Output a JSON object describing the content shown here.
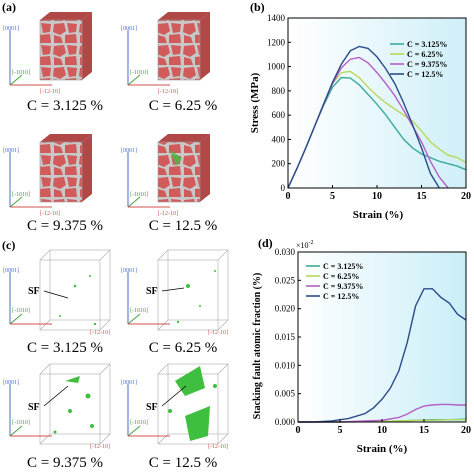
{
  "panel_labels": {
    "a": "(a)",
    "b": "(b)",
    "c": "(c)",
    "d": "(d)"
  },
  "axis_labels": {
    "z": "[0001]",
    "y": "[-1010]",
    "x": "[-12-10]"
  },
  "sf_label": "SF",
  "captions_a": [
    "C = 3.125 %",
    "C = 6.25 %",
    "C = 9.375 %",
    "C = 12.5 %"
  ],
  "captions_c": [
    "C = 3.125 %",
    "C = 6.25 %",
    "C = 9.375 %",
    "C = 12.5 %"
  ],
  "colors": {
    "grain": "#d15b5b",
    "boundary": "#c8c8c8",
    "sf_green": "#3fbf3f",
    "c3125": "#3aaa9a",
    "c625": "#b8d85a",
    "c9375": "#b65ec7",
    "c125": "#2b4c8c"
  },
  "chart_data": [
    {
      "type": "line",
      "xlabel": "Strain (%)",
      "ylabel": "Stress (MPa)",
      "xlim": [
        0,
        20
      ],
      "ylim": [
        0,
        1400
      ],
      "xticks": [
        0,
        5,
        10,
        15,
        20
      ],
      "yticks": [
        0,
        200,
        400,
        600,
        800,
        1000,
        1200,
        1400
      ],
      "legend_position": "top-right",
      "series": [
        {
          "name": "C = 3.125%",
          "color": "#3aaa9a",
          "x": [
            0,
            1,
            2,
            3,
            4,
            5,
            6,
            7,
            8,
            9,
            10,
            11,
            12,
            13,
            14,
            15,
            16,
            17,
            18,
            19,
            20
          ],
          "y": [
            0,
            160,
            330,
            510,
            680,
            830,
            910,
            905,
            850,
            770,
            690,
            600,
            500,
            400,
            330,
            280,
            250,
            220,
            200,
            180,
            150
          ]
        },
        {
          "name": "C = 6.25%",
          "color": "#b8d85a",
          "x": [
            0,
            1,
            2,
            3,
            4,
            5,
            6,
            7,
            8,
            9,
            10,
            11,
            12,
            13,
            14,
            15,
            16,
            17,
            18,
            19,
            20
          ],
          "y": [
            0,
            160,
            330,
            510,
            690,
            860,
            950,
            960,
            910,
            830,
            760,
            700,
            650,
            600,
            550,
            470,
            380,
            320,
            270,
            250,
            210
          ]
        },
        {
          "name": "C = 9.375%",
          "color": "#b65ec7",
          "x": [
            0,
            1,
            2,
            3,
            4,
            5,
            6,
            7,
            8,
            9,
            10,
            11,
            12,
            13,
            14,
            15,
            16,
            17,
            18
          ],
          "y": [
            0,
            160,
            330,
            510,
            690,
            860,
            990,
            1060,
            1075,
            1030,
            950,
            860,
            760,
            640,
            510,
            380,
            220,
            90,
            0
          ]
        },
        {
          "name": "C = 12.5%",
          "color": "#2b4c8c",
          "x": [
            0,
            1,
            2,
            3,
            4,
            5,
            6,
            7,
            8,
            9,
            10,
            11,
            12,
            13,
            14,
            15,
            16,
            17
          ],
          "y": [
            0,
            160,
            330,
            510,
            690,
            870,
            1020,
            1130,
            1165,
            1150,
            1080,
            980,
            860,
            700,
            520,
            330,
            120,
            0
          ]
        }
      ]
    },
    {
      "type": "line",
      "xlabel": "Strain (%)",
      "ylabel": "Stacking fault atomic fraction (%)",
      "scale_note": "×10",
      "scale_exp": "-2",
      "xlim": [
        0,
        20
      ],
      "ylim": [
        0,
        0.03
      ],
      "xticks": [
        0,
        5,
        10,
        15,
        20
      ],
      "yticks": [
        0,
        0.005,
        0.01,
        0.015,
        0.02,
        0.025,
        0.03
      ],
      "ytick_labels": [
        "0.000",
        "0.005",
        "0.010",
        "0.015",
        "0.020",
        "0.025",
        "0.030"
      ],
      "legend_position": "top-left",
      "series": [
        {
          "name": "C = 3.125%",
          "color": "#3aaa9a",
          "x": [
            0,
            5,
            10,
            12,
            14,
            16,
            18,
            20
          ],
          "y": [
            0,
            0,
            0.0001,
            0.0002,
            0.0003,
            0.0004,
            0.0004,
            0.0005
          ]
        },
        {
          "name": "C = 6.25%",
          "color": "#b8d85a",
          "x": [
            0,
            5,
            10,
            12,
            14,
            16,
            18,
            20
          ],
          "y": [
            0,
            0,
            0.0001,
            0.0002,
            0.0003,
            0.0003,
            0.0004,
            0.0004
          ]
        },
        {
          "name": "C = 9.375%",
          "color": "#b65ec7",
          "x": [
            0,
            5,
            10,
            12,
            13,
            14,
            15,
            16,
            17,
            18,
            19,
            20
          ],
          "y": [
            0,
            0,
            0.0003,
            0.0008,
            0.0014,
            0.0022,
            0.0028,
            0.003,
            0.0031,
            0.0031,
            0.003,
            0.003
          ]
        },
        {
          "name": "C = 12.5%",
          "color": "#2b4c8c",
          "x": [
            0,
            2,
            4,
            6,
            8,
            9,
            10,
            11,
            12,
            13,
            14,
            15,
            16,
            17,
            18,
            19,
            20
          ],
          "y": [
            0,
            0,
            0.0002,
            0.0006,
            0.0015,
            0.0025,
            0.004,
            0.006,
            0.009,
            0.014,
            0.0205,
            0.0235,
            0.0235,
            0.022,
            0.021,
            0.019,
            0.018
          ]
        }
      ]
    }
  ]
}
